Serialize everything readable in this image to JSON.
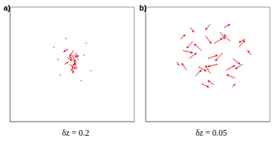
{
  "chart_data": [
    {
      "type": "quiver",
      "label": "a)",
      "title": "δz = 0.2",
      "xlim": [
        0,
        1
      ],
      "ylim": [
        0,
        1
      ],
      "tick_labels": false,
      "color": "#e8101a",
      "x": [
        0.5,
        0.52,
        0.48,
        0.54,
        0.46,
        0.51,
        0.49,
        0.53,
        0.47,
        0.55,
        0.5,
        0.44,
        0.35,
        0.62,
        0.4,
        0.65,
        0.58,
        0.38,
        0.45,
        0.6
      ],
      "y": [
        0.58,
        0.52,
        0.5,
        0.46,
        0.56,
        0.62,
        0.44,
        0.6,
        0.63,
        0.54,
        0.48,
        0.5,
        0.65,
        0.68,
        0.4,
        0.45,
        0.35,
        0.55,
        0.72,
        0.58
      ],
      "u": [
        0.03,
        -0.04,
        0.05,
        -0.02,
        0.04,
        -0.03,
        0.03,
        0.02,
        -0.04,
        -0.03,
        0.01,
        0.03,
        0.01,
        -0.01,
        0.01,
        0.0,
        -0.01,
        0.01,
        0.0,
        -0.01
      ],
      "v": [
        -0.06,
        0.05,
        -0.04,
        0.06,
        -0.03,
        -0.05,
        0.07,
        -0.04,
        -0.02,
        0.04,
        -0.06,
        0.02,
        0.0,
        0.01,
        0.01,
        -0.01,
        0.01,
        -0.01,
        0.01,
        0.0
      ]
    },
    {
      "type": "quiver",
      "label": "b)",
      "title": "δz = 0.05",
      "xlim": [
        0,
        1
      ],
      "ylim": [
        0,
        1
      ],
      "tick_labels": false,
      "color": "#e8101a",
      "x": [
        0.3,
        0.35,
        0.38,
        0.42,
        0.45,
        0.48,
        0.5,
        0.52,
        0.55,
        0.58,
        0.6,
        0.62,
        0.65,
        0.68,
        0.7,
        0.72,
        0.75,
        0.78,
        0.4,
        0.33,
        0.45,
        0.55,
        0.63,
        0.52,
        0.8,
        0.28,
        0.85,
        0.36,
        0.7,
        0.25
      ],
      "y": [
        0.62,
        0.55,
        0.7,
        0.48,
        0.62,
        0.75,
        0.55,
        0.42,
        0.68,
        0.5,
        0.78,
        0.6,
        0.45,
        0.7,
        0.55,
        0.38,
        0.65,
        0.5,
        0.4,
        0.45,
        0.33,
        0.32,
        0.82,
        0.85,
        0.72,
        0.72,
        0.58,
        0.82,
        0.3,
        0.52
      ],
      "u": [
        0.08,
        0.06,
        -0.05,
        0.07,
        -0.06,
        0.05,
        0.08,
        -0.04,
        0.07,
        -0.08,
        0.04,
        -0.06,
        0.07,
        -0.05,
        0.06,
        -0.07,
        0.05,
        -0.06,
        0.05,
        -0.04,
        0.06,
        -0.05,
        0.05,
        -0.04,
        -0.05,
        0.04,
        -0.03,
        0.03,
        0.02,
        0.02
      ],
      "v": [
        -0.02,
        0.05,
        -0.06,
        -0.04,
        0.06,
        -0.07,
        0.03,
        0.07,
        0.05,
        -0.02,
        -0.06,
        -0.07,
        0.04,
        0.06,
        -0.05,
        0.03,
        0.06,
        -0.04,
        0.05,
        0.06,
        -0.03,
        0.04,
        0.03,
        -0.05,
        -0.03,
        0.04,
        0.04,
        -0.04,
        0.03,
        -0.03
      ]
    }
  ]
}
